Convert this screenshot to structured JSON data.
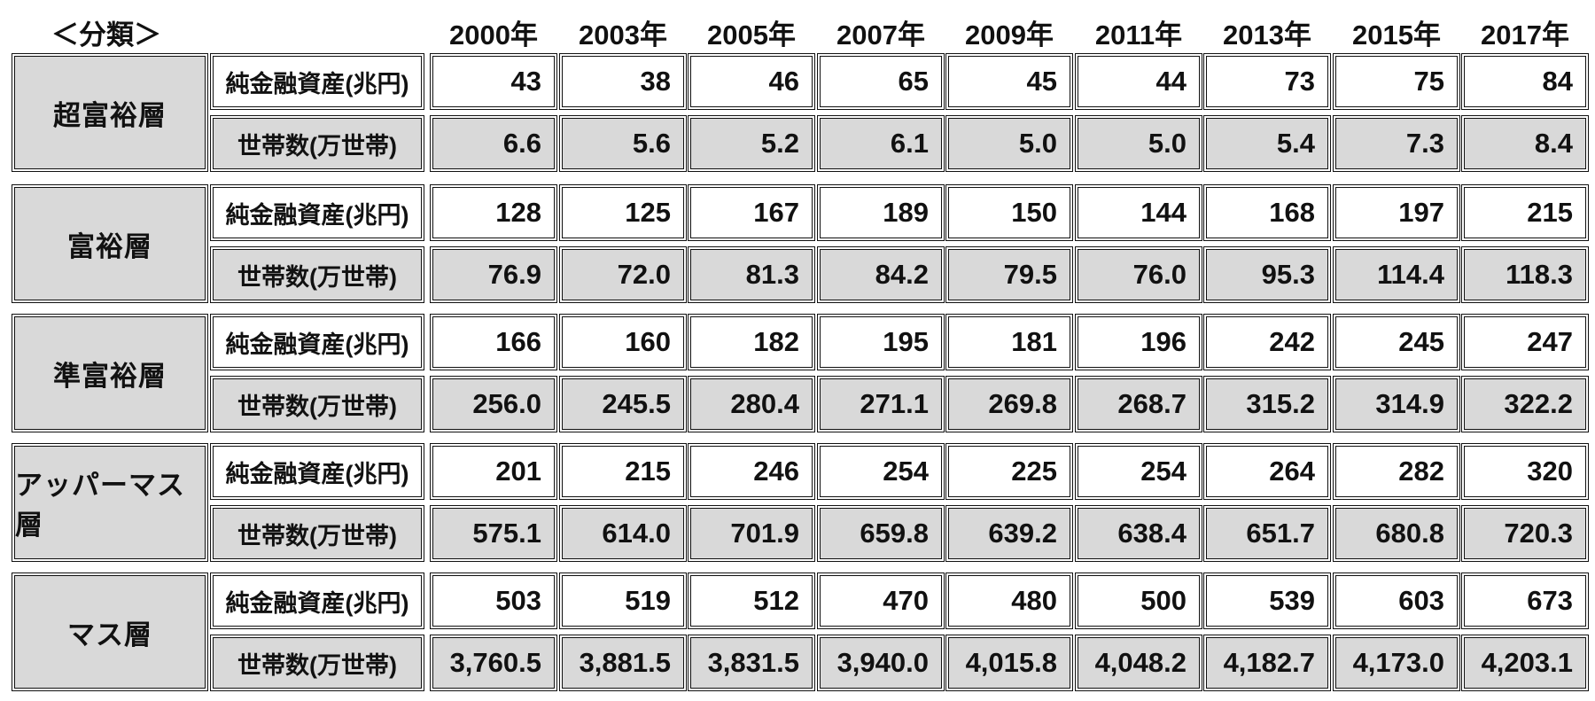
{
  "chart_data": {
    "type": "table",
    "header_label": "＜分類＞",
    "years": [
      "2000年",
      "2003年",
      "2005年",
      "2007年",
      "2009年",
      "2011年",
      "2013年",
      "2015年",
      "2017年"
    ],
    "metrics": [
      "純金融資産(兆円)",
      "世帯数(万世帯)"
    ],
    "categories": [
      {
        "name": "超富裕層",
        "assets": [
          "43",
          "38",
          "46",
          "65",
          "45",
          "44",
          "73",
          "75",
          "84"
        ],
        "households": [
          "6.6",
          "5.6",
          "5.2",
          "6.1",
          "5.0",
          "5.0",
          "5.4",
          "7.3",
          "8.4"
        ]
      },
      {
        "name": "富裕層",
        "assets": [
          "128",
          "125",
          "167",
          "189",
          "150",
          "144",
          "168",
          "197",
          "215"
        ],
        "households": [
          "76.9",
          "72.0",
          "81.3",
          "84.2",
          "79.5",
          "76.0",
          "95.3",
          "114.4",
          "118.3"
        ]
      },
      {
        "name": "準富裕層",
        "assets": [
          "166",
          "160",
          "182",
          "195",
          "181",
          "196",
          "242",
          "245",
          "247"
        ],
        "households": [
          "256.0",
          "245.5",
          "280.4",
          "271.1",
          "269.8",
          "268.7",
          "315.2",
          "314.9",
          "322.2"
        ]
      },
      {
        "name": "アッパーマス層",
        "assets": [
          "201",
          "215",
          "246",
          "254",
          "225",
          "254",
          "264",
          "282",
          "320"
        ],
        "households": [
          "575.1",
          "614.0",
          "701.9",
          "659.8",
          "639.2",
          "638.4",
          "651.7",
          "680.8",
          "720.3"
        ]
      },
      {
        "name": "マス層",
        "assets": [
          "503",
          "519",
          "512",
          "470",
          "480",
          "500",
          "539",
          "603",
          "673"
        ],
        "households": [
          "3,760.5",
          "3,881.5",
          "3,831.5",
          "3,940.0",
          "4,015.8",
          "4,048.2",
          "4,182.7",
          "4,173.0",
          "4,203.1"
        ]
      }
    ]
  }
}
